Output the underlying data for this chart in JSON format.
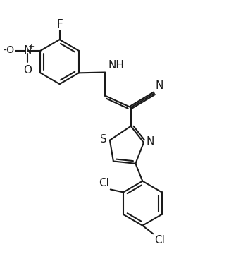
{
  "bg_color": "#ffffff",
  "line_color": "#1a1a1a",
  "line_width": 1.5,
  "figsize": [
    3.35,
    3.94
  ],
  "dpi": 100,
  "xlim": [
    0,
    10
  ],
  "ylim": [
    0,
    11.8
  ]
}
